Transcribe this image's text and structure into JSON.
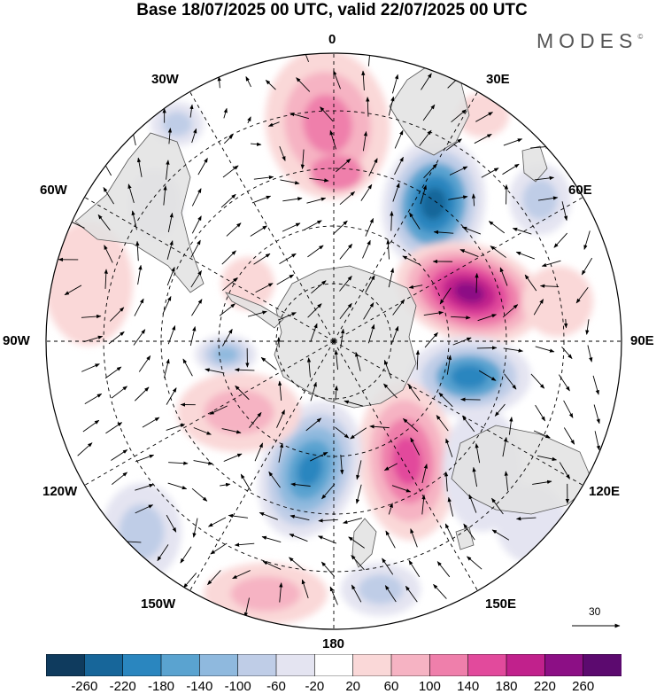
{
  "title": "Base 18/07/2025 00 UTC, valid 22/07/2025 00 UTC",
  "brand": "MODES",
  "brand_mark": "©",
  "longitude_labels": {
    "lon_0": "0",
    "lon_30e": "30E",
    "lon_60e": "60E",
    "lon_90e": "90E",
    "lon_120e": "120E",
    "lon_150e": "150E",
    "lon_180": "180",
    "lon_150w": "150W",
    "lon_120w": "120W",
    "lon_90w": "90W",
    "lon_60w": "60W",
    "lon_30w": "30W"
  },
  "vector_scale": {
    "label": "30"
  },
  "colorbar": {
    "ticks": [
      "-260",
      "-220",
      "-180",
      "-140",
      "-100",
      "-60",
      "-20",
      "20",
      "60",
      "100",
      "140",
      "180",
      "220",
      "260"
    ],
    "colors": [
      "#0f3b5e",
      "#17669a",
      "#2a86bf",
      "#5aa3d0",
      "#8fb9de",
      "#bfcde7",
      "#e4e4f1",
      "#ffffff",
      "#fad8d8",
      "#f6b3c3",
      "#ef7fab",
      "#e24a9c",
      "#c1218c",
      "#8c0f85",
      "#5c0a6f"
    ]
  },
  "colors": {
    "land": "#e2e2e2",
    "coast": "#555555",
    "grid": "#000000"
  }
}
